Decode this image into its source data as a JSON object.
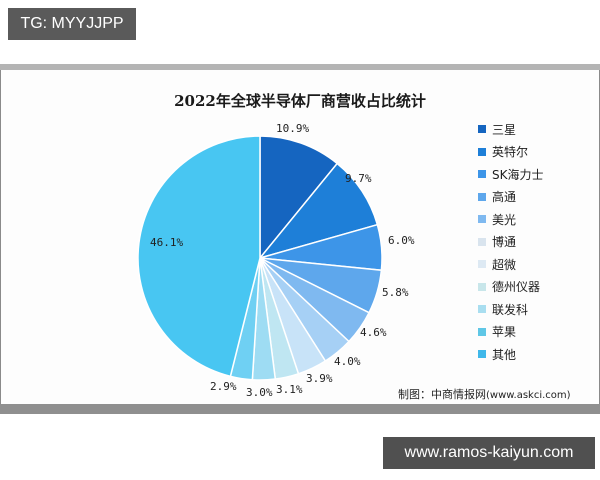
{
  "header_badge": {
    "text": "TG: MYYJJPP"
  },
  "footer_badge": {
    "text": "www.ramos-kaiyun.com"
  },
  "chart_data": {
    "type": "pie",
    "title": "2022年全球半导体厂商营收占比统计",
    "unit": "%",
    "categories": [
      "三星",
      "英特尔",
      "SK海力士",
      "高通",
      "美光",
      "博通",
      "超微",
      "德州仪器",
      "联发科",
      "苹果",
      "其他"
    ],
    "values": [
      10.9,
      9.7,
      6.0,
      5.8,
      4.6,
      4.0,
      3.9,
      3.1,
      3.0,
      2.9,
      46.1
    ],
    "labels": [
      "10.9%",
      "9.7%",
      "6.0%",
      "5.8%",
      "4.6%",
      "4.0%",
      "3.9%",
      "3.1%",
      "3.0%",
      "2.9%",
      "46.1%"
    ],
    "colors": [
      "#1565c0",
      "#1e7fd8",
      "#3d95e8",
      "#5ea7ec",
      "#7fb9f0",
      "#a6d0f5",
      "#c8e3f8",
      "#bfe6f2",
      "#9edcf3",
      "#6fd0f3",
      "#48c6f2"
    ],
    "start_angle_deg": 0,
    "direction": "clockwise",
    "legend_position": "right",
    "source": "制图：中商情报网(www.askci.com)"
  },
  "legend": {
    "items": [
      {
        "label": "三星",
        "color": "#1565c0"
      },
      {
        "label": "英特尔",
        "color": "#1e7fd8"
      },
      {
        "label": "SK海力士",
        "color": "#3d95e8"
      },
      {
        "label": "高通",
        "color": "#5ea7ec"
      },
      {
        "label": "美光",
        "color": "#7fb9f0"
      },
      {
        "label": "博通",
        "color": "#d9e4ee"
      },
      {
        "label": "超微",
        "color": "#dde9f3"
      },
      {
        "label": "德州仪器",
        "color": "#c8e6ea"
      },
      {
        "label": "联发科",
        "color": "#a9def0"
      },
      {
        "label": "苹果",
        "color": "#5fc7e6"
      },
      {
        "label": "其他",
        "color": "#3fb8ea"
      }
    ]
  },
  "source": {
    "prefix": "制图：中商情报网",
    "url": "(www.askci.com)"
  }
}
